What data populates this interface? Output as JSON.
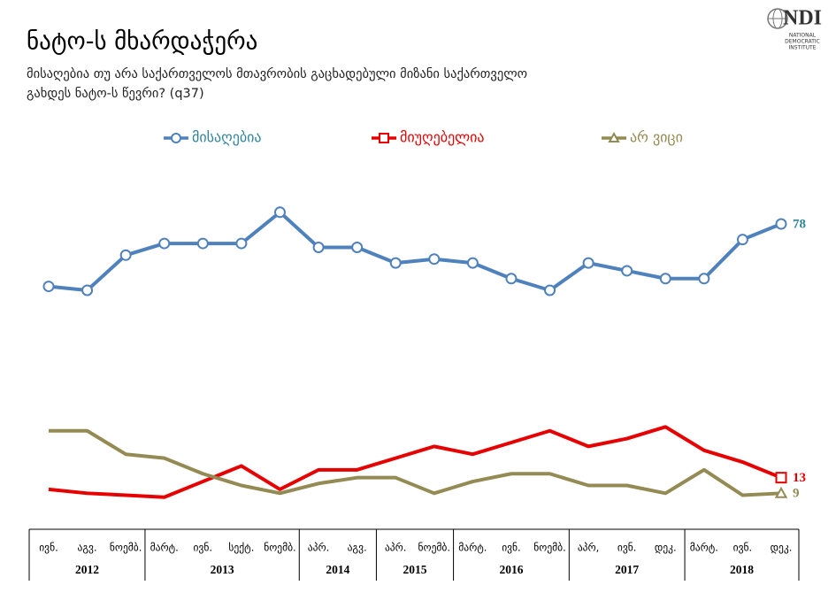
{
  "chart_data": {
    "type": "line",
    "title": "ნატო-ს მხარდაჭერა",
    "subtitle": [
      "მისაღებია თუ არა საქართველოს მთავრობის გაცხადებული მიზანი საქართველო",
      "გახდეს ნატო-ს წევრი? (q37)"
    ],
    "logo": {
      "name": "NDI",
      "caption": [
        "NATIONAL",
        "DEMOCRATIC",
        "INSTITUTE"
      ]
    },
    "category_groups": [
      {
        "label": "2012",
        "categories": [
          "ივნ.",
          "აგვ.",
          "ნოემბ."
        ]
      },
      {
        "label": "2013",
        "categories": [
          "მარტ.",
          "ივნ.",
          "სექტ.",
          "ნოემბ."
        ]
      },
      {
        "label": "2014",
        "categories": [
          "აპრ.",
          "აგვ."
        ]
      },
      {
        "label": "2015",
        "categories": [
          "აპრ.",
          "ნოემბ."
        ]
      },
      {
        "label": "2016",
        "categories": [
          "მარტ.",
          "ივნ.",
          "ნოემბ."
        ]
      },
      {
        "label": "2017",
        "categories": [
          "აპრ,",
          "ივნ.",
          "დეკ."
        ]
      },
      {
        "label": "2018",
        "categories": [
          "მარტ.",
          "ივნ.",
          "დეკ."
        ]
      }
    ],
    "series": [
      {
        "name": "მისაღებია",
        "color": "#4f81bd",
        "label_color": "#31849b",
        "marker": "circle",
        "values": [
          62,
          61,
          70,
          73,
          73,
          73,
          81,
          72,
          72,
          68,
          69,
          68,
          64,
          61,
          68,
          66,
          64,
          64,
          74,
          78
        ]
      },
      {
        "name": "მიუღებელია",
        "color": "#e60000",
        "label_color": "#e60000",
        "marker": "square",
        "values": [
          10,
          9,
          8.5,
          8,
          12,
          16,
          10,
          15,
          15,
          18,
          21,
          19,
          22,
          25,
          21,
          23,
          26,
          20,
          17,
          13
        ]
      },
      {
        "name": "არ ვიცი",
        "color": "#948a54",
        "label_color": "#948a54",
        "marker": "triangle",
        "values": [
          25,
          25,
          19,
          18,
          14,
          11,
          9,
          11.5,
          13,
          13,
          9,
          12,
          14,
          14,
          11,
          11,
          9,
          15,
          8.5,
          9
        ]
      }
    ],
    "ylim": [
      0,
      100
    ],
    "legend": "top"
  }
}
